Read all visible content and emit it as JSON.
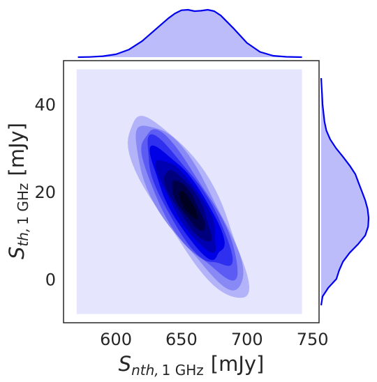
{
  "chart_data": {
    "type": "kde-jointplot",
    "title": "",
    "xlabel": {
      "symbol": "S",
      "subscript": "nth,",
      "subscript_unit": "1 GHz",
      "unit": "[mJy]"
    },
    "ylabel": {
      "symbol": "S",
      "subscript": "th,",
      "subscript_unit": "1 GHz",
      "unit": "[mJy]"
    },
    "xlim": [
      560,
      755
    ],
    "ylim": [
      -10,
      50
    ],
    "xticks": [
      600,
      650,
      700,
      750
    ],
    "yticks": [
      0,
      20,
      40
    ],
    "grid": false,
    "colors": {
      "line": "#0000ee",
      "fill": "#bcbcfa",
      "background_fill": "#e5e5fd",
      "contour_levels": [
        "#e5e5fd",
        "#b3b3f9",
        "#8989f6",
        "#5c5cf4",
        "#2f2ff0",
        "#0000e6",
        "#0000b3",
        "#00007e",
        "#00004a",
        "#000022"
      ]
    },
    "joint_density": {
      "center": [
        655,
        17
      ],
      "major_axis_slope": -0.5,
      "levels": 10,
      "support_x": [
        570,
        742
      ],
      "support_y": [
        -8,
        48
      ]
    },
    "marginal_x": {
      "x": [
        571,
        580,
        590,
        600,
        610,
        620,
        630,
        640,
        645,
        650,
        655,
        660,
        665,
        670,
        675,
        680,
        690,
        700,
        710,
        720,
        730,
        742
      ],
      "density": [
        0.0,
        0.005,
        0.02,
        0.06,
        0.16,
        0.34,
        0.58,
        0.82,
        0.92,
        0.99,
        1.0,
        0.97,
        0.98,
        1.0,
        0.97,
        0.88,
        0.6,
        0.3,
        0.11,
        0.03,
        0.008,
        0.0
      ]
    },
    "marginal_y": {
      "y": [
        -6,
        -4,
        -2,
        0,
        2,
        4,
        6,
        8,
        10,
        12,
        14,
        16,
        18,
        20,
        22,
        24,
        26,
        28,
        30,
        32,
        34,
        36,
        38,
        40,
        42,
        44,
        46
      ],
      "density": [
        0.0,
        0.03,
        0.15,
        0.32,
        0.38,
        0.46,
        0.6,
        0.78,
        0.93,
        0.99,
        1.0,
        0.98,
        0.93,
        0.86,
        0.79,
        0.72,
        0.6,
        0.46,
        0.31,
        0.19,
        0.11,
        0.07,
        0.05,
        0.03,
        0.02,
        0.01,
        0.0
      ]
    }
  }
}
